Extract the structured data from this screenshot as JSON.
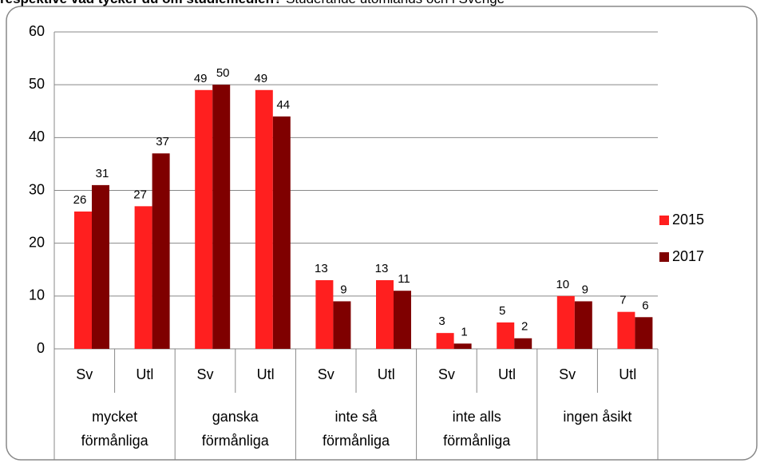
{
  "chart_data": {
    "type": "bar",
    "title": [
      "respektive vad tycker du om studiemedlen?",
      " Studerande utomlands och i Sverige"
    ],
    "categories": [
      "Sv",
      "Utl",
      "Sv",
      "Utl",
      "Sv",
      "Utl",
      "Sv",
      "Utl",
      "Sv",
      "Utl"
    ],
    "group_labels": [
      [
        "mycket",
        "förmånliga"
      ],
      [
        "ganska",
        "förmånliga"
      ],
      [
        "inte så",
        "förmånliga"
      ],
      [
        "inte alls",
        "förmånliga"
      ],
      [
        "ingen åsikt"
      ]
    ],
    "series": [
      {
        "name": "2015",
        "color": "#ff1f1f",
        "values": [
          26,
          27,
          49,
          49,
          13,
          13,
          3,
          5,
          10,
          7
        ]
      },
      {
        "name": "2017",
        "color": "#7f0000",
        "values": [
          31,
          37,
          50,
          44,
          9,
          11,
          1,
          2,
          9,
          6
        ]
      }
    ],
    "ylim": [
      0,
      60
    ],
    "yticks": [
      0,
      10,
      20,
      30,
      40,
      50,
      60
    ],
    "grid": true,
    "legend": "right"
  }
}
